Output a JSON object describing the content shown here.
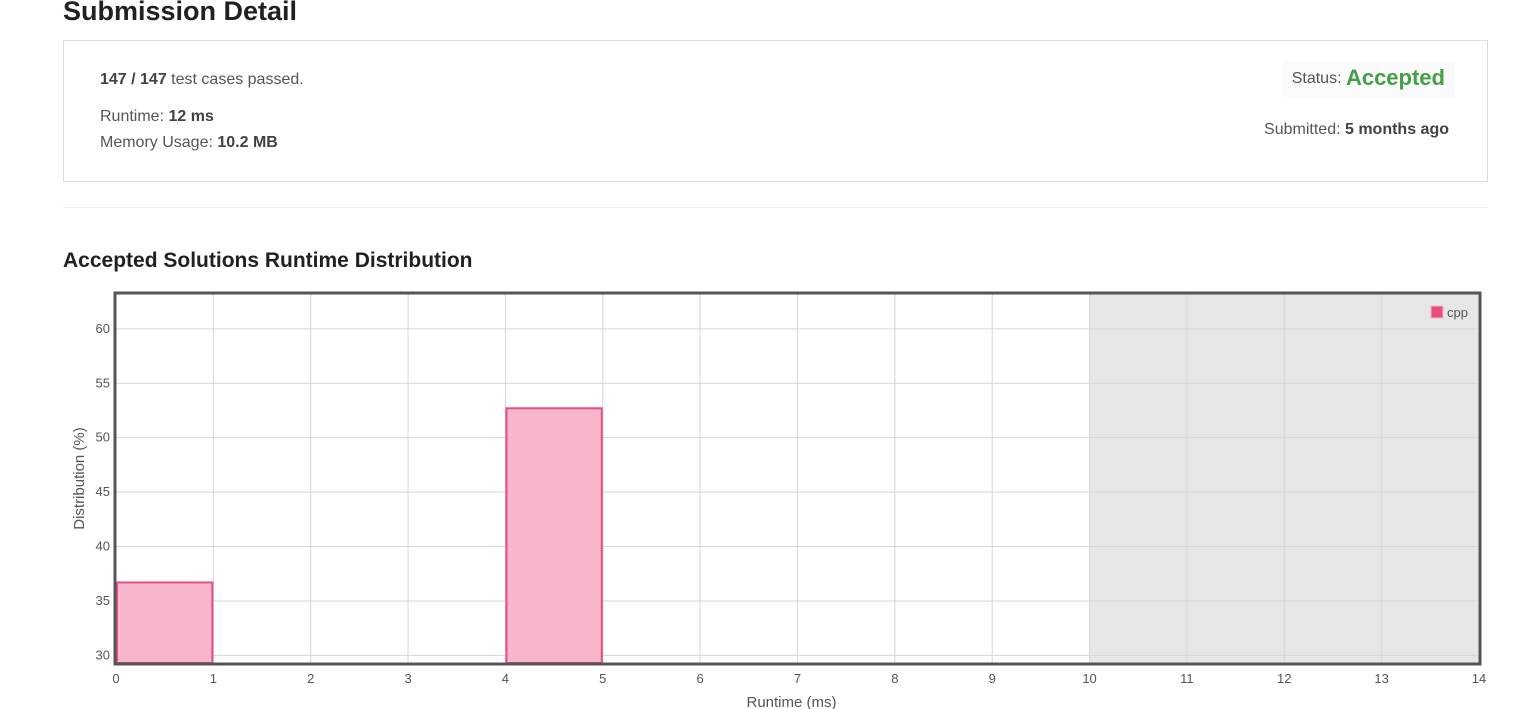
{
  "page_title": "Submission Detail",
  "summary": {
    "cases_passed": "147 / 147",
    "cases_suffix": " test cases passed.",
    "runtime_label": "Runtime: ",
    "runtime_value": "12 ms",
    "memory_label": "Memory Usage: ",
    "memory_value": "10.2 MB",
    "status_label": "Status: ",
    "status_value": "Accepted",
    "submitted_label": "Submitted: ",
    "submitted_value": "5 months ago"
  },
  "colors": {
    "accepted": "#43a047",
    "bar_fill": "#f8b6cb",
    "bar_stroke": "#e84f7d",
    "shade": "#e6e6e6"
  },
  "chart_title": "Accepted Solutions Runtime Distribution",
  "chart_data": {
    "type": "bar",
    "title": "Accepted Solutions Runtime Distribution",
    "xlabel": "Runtime (ms)",
    "ylabel": "Distribution (%)",
    "xlim": [
      0,
      14
    ],
    "ylim": [
      29.3,
      63.2
    ],
    "xticks": [
      0,
      1,
      2,
      3,
      4,
      5,
      6,
      7,
      8,
      9,
      10,
      11,
      12,
      13,
      14
    ],
    "yticks": [
      30,
      35,
      40,
      45,
      50,
      55,
      60
    ],
    "shaded_range": [
      10,
      14
    ],
    "grid": true,
    "legend": "top-right",
    "series": [
      {
        "name": "cpp",
        "bins": [
          {
            "x0": 0,
            "x1": 1,
            "value": 36.7
          },
          {
            "x0": 4,
            "x1": 5,
            "value": 52.7
          }
        ]
      }
    ]
  }
}
